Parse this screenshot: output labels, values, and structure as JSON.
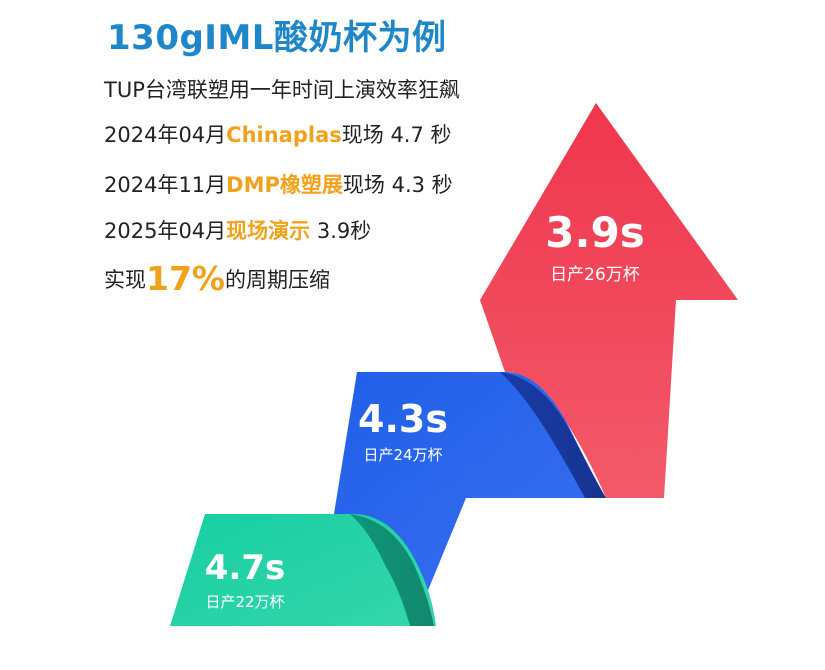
{
  "title": "130gIML酸奶杯为例",
  "lines": {
    "intro": "TUP台湾联塑用一年时间上演效率狂飙",
    "l2_prefix": "2024年04月",
    "l2_highlight": "Chinaplas",
    "l2_suffix": "现场 4.7 秒",
    "l3_prefix": "2024年11月",
    "l3_highlight": "DMP橡塑展",
    "l3_suffix": "现场 4.3 秒",
    "l4_prefix": "2025年04月",
    "l4_highlight": "现场演示",
    "l4_suffix": " 3.9秒",
    "l5_prefix": "实现",
    "l5_highlight": "17%",
    "l5_suffix": "的周期压缩"
  },
  "stages": [
    {
      "value": "3.9s",
      "sub": "日产26万杯",
      "color": "#e8344a"
    },
    {
      "value": "4.3s",
      "sub": "日产24万杯",
      "color": "#2a63e0"
    },
    {
      "value": "4.7s",
      "sub": "日产22万杯",
      "color": "#22c79a"
    }
  ],
  "colors": {
    "title": "#1e86c9",
    "highlight": "#f0a21c",
    "red": "#e8344a",
    "blue": "#2a63e0",
    "green": "#22c79a"
  }
}
